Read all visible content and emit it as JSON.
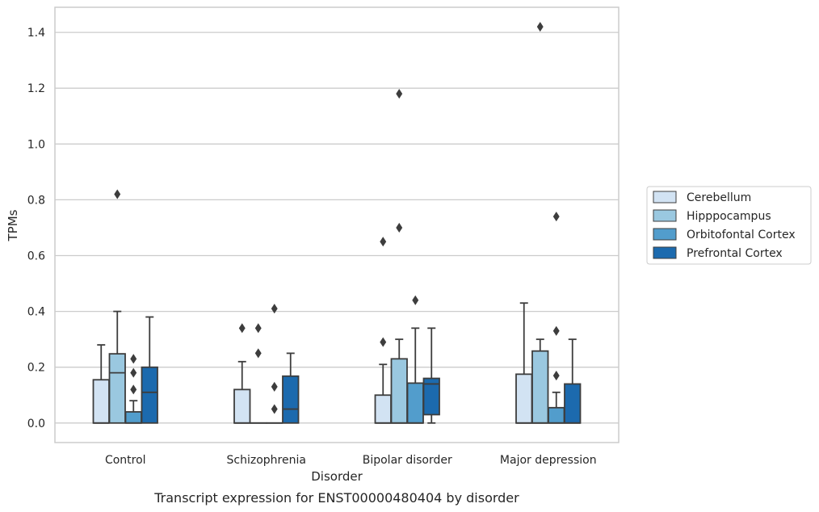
{
  "chart_data": {
    "type": "box",
    "title": "",
    "caption": "Transcript expression for ENST00000480404 by disorder",
    "xlabel": "Disorder",
    "ylabel": "TPMs",
    "ylim": [
      -0.07,
      1.49
    ],
    "yticks": [
      0.0,
      0.2,
      0.4,
      0.6,
      0.8,
      1.0,
      1.2,
      1.4
    ],
    "ytick_labels": [
      "0.0",
      "0.2",
      "0.4",
      "0.6",
      "0.8",
      "1.0",
      "1.2",
      "1.4"
    ],
    "grid": "horizontal",
    "legend_position": "right",
    "categories": [
      "Control",
      "Schizophrenia",
      "Bipolar disorder",
      "Major depression"
    ],
    "series": [
      {
        "name": "Cerebellum",
        "color": "#d2e3f3",
        "boxes": [
          {
            "min": 0.0,
            "q1": 0.0,
            "median": 0.0,
            "q3": 0.155,
            "max": 0.28,
            "outliers": []
          },
          {
            "min": 0.0,
            "q1": 0.0,
            "median": 0.0,
            "q3": 0.12,
            "max": 0.22,
            "outliers": [
              0.34
            ]
          },
          {
            "min": 0.0,
            "q1": 0.0,
            "median": 0.0,
            "q3": 0.1,
            "max": 0.21,
            "outliers": [
              0.29,
              0.65
            ]
          },
          {
            "min": 0.0,
            "q1": 0.0,
            "median": 0.0,
            "q3": 0.175,
            "max": 0.43,
            "outliers": []
          }
        ]
      },
      {
        "name": "Hipppocampus",
        "color": "#9ac8e0",
        "boxes": [
          {
            "min": 0.0,
            "q1": 0.0,
            "median": 0.18,
            "q3": 0.248,
            "max": 0.4,
            "outliers": [
              0.82
            ]
          },
          {
            "min": 0.0,
            "q1": 0.0,
            "median": 0.0,
            "q3": 0.0,
            "max": 0.0,
            "outliers": [
              0.25,
              0.34
            ]
          },
          {
            "min": 0.0,
            "q1": 0.0,
            "median": 0.0,
            "q3": 0.23,
            "max": 0.3,
            "outliers": [
              0.7,
              1.18
            ]
          },
          {
            "min": 0.0,
            "q1": 0.0,
            "median": 0.0,
            "q3": 0.258,
            "max": 0.3,
            "outliers": [
              1.42
            ]
          }
        ]
      },
      {
        "name": "Orbitofontal Cortex",
        "color": "#529dcc",
        "boxes": [
          {
            "min": 0.0,
            "q1": 0.0,
            "median": 0.0,
            "q3": 0.04,
            "max": 0.08,
            "outliers": [
              0.12,
              0.18,
              0.23
            ]
          },
          {
            "min": 0.0,
            "q1": 0.0,
            "median": 0.0,
            "q3": 0.0,
            "max": 0.0,
            "outliers": [
              0.05,
              0.13,
              0.41
            ]
          },
          {
            "min": 0.0,
            "q1": 0.0,
            "median": 0.0,
            "q3": 0.143,
            "max": 0.34,
            "outliers": [
              0.44
            ]
          },
          {
            "min": 0.0,
            "q1": 0.0,
            "median": 0.0,
            "q3": 0.055,
            "max": 0.11,
            "outliers": [
              0.17,
              0.33,
              0.74
            ]
          }
        ]
      },
      {
        "name": "Prefrontal Cortex",
        "color": "#1c6aae",
        "boxes": [
          {
            "min": 0.0,
            "q1": 0.0,
            "median": 0.11,
            "q3": 0.2,
            "max": 0.38,
            "outliers": []
          },
          {
            "min": 0.0,
            "q1": 0.0,
            "median": 0.05,
            "q3": 0.168,
            "max": 0.25,
            "outliers": []
          },
          {
            "min": 0.0,
            "q1": 0.03,
            "median": 0.14,
            "q3": 0.16,
            "max": 0.34,
            "outliers": []
          },
          {
            "min": 0.0,
            "q1": 0.0,
            "median": 0.0,
            "q3": 0.14,
            "max": 0.3,
            "outliers": []
          }
        ]
      }
    ]
  }
}
